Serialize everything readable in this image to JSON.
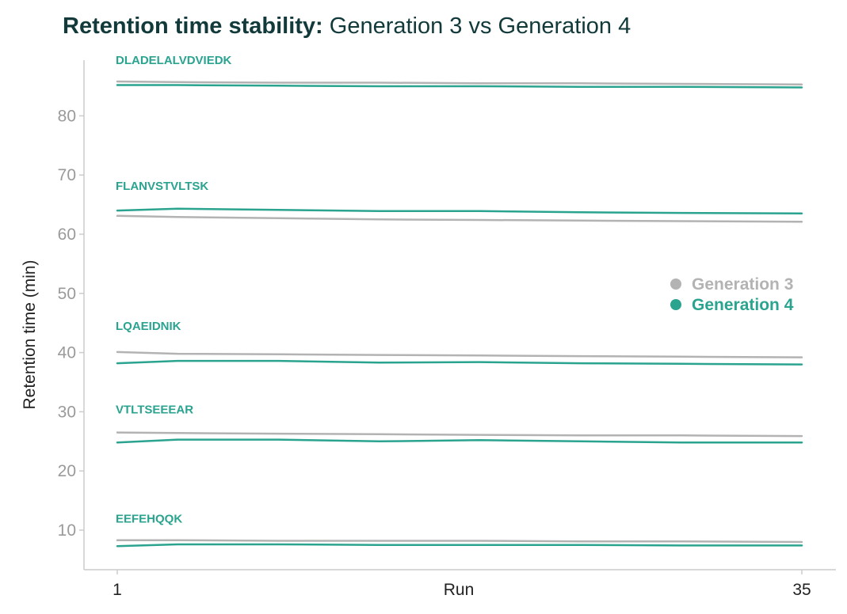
{
  "colors": {
    "gen3": "#b3b3b3",
    "gen4": "#2aa38f",
    "peptide_label": "#2aa38f",
    "title": "#133a3a",
    "axis": "#cccccc",
    "tick_text": "#9a9a9a"
  },
  "chart_data": {
    "type": "line",
    "title": {
      "bold": "Retention time stability:",
      "regular": " Generation 3 vs Generation 4"
    },
    "xlabel": "Run",
    "ylabel": "Retention time (min)",
    "xlim": [
      1,
      35
    ],
    "ylim": [
      3,
      88
    ],
    "x_ticks": [
      "1",
      "35"
    ],
    "y_ticks": [
      10,
      20,
      30,
      40,
      50,
      60,
      70,
      80
    ],
    "grid": false,
    "legend": {
      "placement": "right",
      "entries": [
        "Generation 3",
        "Generation 4"
      ]
    },
    "x": [
      1,
      4,
      9,
      14,
      19,
      24,
      29,
      35
    ],
    "peptides": [
      {
        "label": "DLADELALVDVIEDK",
        "gen3": [
          85.8,
          85.7,
          85.6,
          85.6,
          85.5,
          85.5,
          85.4,
          85.3
        ],
        "gen4": [
          85.2,
          85.2,
          85.1,
          85.0,
          85.0,
          84.9,
          84.9,
          84.8
        ]
      },
      {
        "label": "FLANVSTVLTSK",
        "gen3": [
          63.1,
          62.9,
          62.7,
          62.5,
          62.4,
          62.3,
          62.2,
          62.1
        ],
        "gen4": [
          64.0,
          64.3,
          64.1,
          63.9,
          63.9,
          63.7,
          63.6,
          63.5
        ]
      },
      {
        "label": "LQAEIDNIK",
        "gen3": [
          40.1,
          39.8,
          39.7,
          39.6,
          39.5,
          39.4,
          39.3,
          39.2
        ],
        "gen4": [
          38.2,
          38.6,
          38.6,
          38.3,
          38.4,
          38.2,
          38.1,
          38.0
        ]
      },
      {
        "label": "VTLTSEEEAR",
        "gen3": [
          26.5,
          26.4,
          26.3,
          26.2,
          26.1,
          26.0,
          26.0,
          25.9
        ],
        "gen4": [
          24.8,
          25.3,
          25.3,
          25.0,
          25.2,
          25.0,
          24.8,
          24.8
        ]
      },
      {
        "label": "EEFEHQQK",
        "gen3": [
          8.3,
          8.3,
          8.2,
          8.2,
          8.2,
          8.1,
          8.1,
          8.0
        ],
        "gen4": [
          7.3,
          7.6,
          7.6,
          7.5,
          7.5,
          7.5,
          7.4,
          7.4
        ]
      }
    ]
  }
}
